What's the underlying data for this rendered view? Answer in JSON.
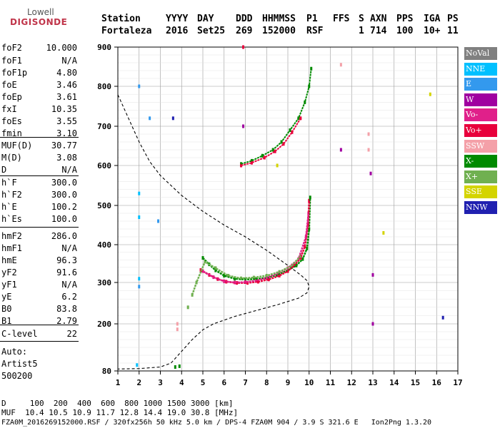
{
  "logo": {
    "line1": "Lowell",
    "line2": "DIGISONDE"
  },
  "header": {
    "row1": [
      "Station",
      "YYYY",
      "DAY",
      "DDD",
      "HHMMSS",
      "P1",
      "FFS",
      "S",
      "AXN",
      "PPS",
      "IGA",
      "PS"
    ],
    "row2": [
      "Fortaleza",
      "2016",
      "Set25",
      "269",
      "152000",
      "RSF",
      "1",
      "714",
      "100",
      "10+",
      "11"
    ]
  },
  "params": [
    {
      "name": "foF2",
      "value": "10.000"
    },
    {
      "name": "foF1",
      "value": "N/A"
    },
    {
      "name": "foF1p",
      "value": "4.80"
    },
    {
      "name": "foE",
      "value": "3.46"
    },
    {
      "name": "foEp",
      "value": "3.61"
    },
    {
      "name": "fxI",
      "value": "10.35"
    },
    {
      "name": "foEs",
      "value": "3.55"
    },
    {
      "name": "fmin",
      "value": "3.10"
    },
    {
      "name": "MUF(D)",
      "value": "30.77"
    },
    {
      "name": "M(D)",
      "value": "3.08"
    },
    {
      "name": "D",
      "value": "N/A"
    },
    {
      "name": "h`F",
      "value": "300.0"
    },
    {
      "name": "h`F2",
      "value": "300.0"
    },
    {
      "name": "h`E",
      "value": "100.2"
    },
    {
      "name": "h`Es",
      "value": "100.0"
    },
    {
      "name": "hmF2",
      "value": "286.0"
    },
    {
      "name": "hmF1",
      "value": "N/A"
    },
    {
      "name": "hmE",
      "value": "96.3"
    },
    {
      "name": "yF2",
      "value": "91.6"
    },
    {
      "name": "yF1",
      "value": "N/A"
    },
    {
      "name": "yE",
      "value": "6.2"
    },
    {
      "name": "B0",
      "value": "83.8"
    },
    {
      "name": "B1",
      "value": "2.79"
    },
    {
      "name": "C-level",
      "value": "22"
    },
    {
      "name": "Auto:",
      "value": ""
    },
    {
      "name": "Artist5",
      "value": ""
    },
    {
      "name": "500200",
      "value": ""
    }
  ],
  "footer": {
    "line1": "D     100  200  400  600  800 1000 1500 3000 [km]",
    "line2": "MUF  10.4 10.5 10.9 11.7 12.8 14.4 19.0 30.8 [MHz]",
    "line3": "FZA0M_2016269152000.RSF / 320fx256h 50 kHz 5.0 km / DPS-4 FZA0M 904 / 3.9 S 321.6 E   Ion2Png 1.3.20"
  },
  "legend": [
    {
      "label": "NoVal",
      "color": "#808080"
    },
    {
      "label": "NNE",
      "color": "#00c0ff"
    },
    {
      "label": "E",
      "color": "#3399ee"
    },
    {
      "label": "W",
      "color": "#a000a0"
    },
    {
      "label": "Vo-",
      "color": "#e0208a"
    },
    {
      "label": "Vo+",
      "color": "#e8003c"
    },
    {
      "label": "SSW",
      "color": "#f4a0a8"
    },
    {
      "label": "X-",
      "color": "#008a00"
    },
    {
      "label": "X+",
      "color": "#70b050"
    },
    {
      "label": "SSE",
      "color": "#d4d400"
    },
    {
      "label": "NNW",
      "color": "#2020b0"
    }
  ],
  "chart_data": {
    "type": "scatter",
    "xlabel": "",
    "ylabel": "",
    "x_ticks": [
      1,
      2,
      3,
      4,
      5,
      6,
      7,
      8,
      9,
      10,
      11,
      12,
      13,
      14,
      15,
      16,
      17
    ],
    "y_ticks": [
      80,
      200,
      300,
      400,
      500,
      600,
      700,
      800,
      900
    ],
    "xlim": [
      1,
      17
    ],
    "ylim": [
      80,
      900
    ],
    "y_scale": "reciprocal-compressed",
    "grid": true,
    "series": [
      {
        "name": "X-",
        "color": "#008a00",
        "points": [
          [
            5.0,
            365
          ],
          [
            5.3,
            348
          ],
          [
            5.6,
            332
          ],
          [
            6.0,
            318
          ],
          [
            6.5,
            310
          ],
          [
            7.0,
            308
          ],
          [
            7.5,
            309
          ],
          [
            8.0,
            312
          ],
          [
            8.5,
            320
          ],
          [
            9.0,
            332
          ],
          [
            9.4,
            345
          ],
          [
            9.7,
            362
          ],
          [
            9.9,
            390
          ],
          [
            10.0,
            440
          ],
          [
            10.05,
            520
          ],
          [
            6.8,
            604
          ],
          [
            7.3,
            612
          ],
          [
            7.8,
            625
          ],
          [
            8.3,
            640
          ],
          [
            8.7,
            660
          ],
          [
            9.1,
            690
          ],
          [
            9.5,
            720
          ],
          [
            9.8,
            760
          ],
          [
            10.0,
            800
          ],
          [
            10.1,
            845
          ],
          [
            3.7,
            90
          ],
          [
            3.9,
            92
          ]
        ]
      },
      {
        "name": "Vo+",
        "color": "#e8003c",
        "points": [
          [
            4.9,
            333
          ],
          [
            5.3,
            320
          ],
          [
            5.7,
            309
          ],
          [
            6.1,
            302
          ],
          [
            6.6,
            299
          ],
          [
            7.1,
            299
          ],
          [
            7.6,
            302
          ],
          [
            8.1,
            308
          ],
          [
            8.6,
            318
          ],
          [
            9.0,
            330
          ],
          [
            9.3,
            345
          ],
          [
            9.6,
            365
          ],
          [
            9.8,
            395
          ],
          [
            9.95,
            450
          ],
          [
            10.0,
            512
          ],
          [
            6.8,
            600
          ],
          [
            7.3,
            607
          ],
          [
            7.9,
            620
          ],
          [
            8.4,
            636
          ],
          [
            8.8,
            655
          ],
          [
            9.2,
            685
          ],
          [
            9.6,
            720
          ],
          [
            6.9,
            900
          ]
        ]
      },
      {
        "name": "Vo-",
        "color": "#e0208a",
        "points": [
          [
            5.0,
            330
          ],
          [
            5.5,
            314
          ],
          [
            6.0,
            303
          ],
          [
            6.5,
            300
          ],
          [
            7.0,
            301
          ],
          [
            7.5,
            305
          ],
          [
            8.0,
            312
          ],
          [
            8.5,
            324
          ],
          [
            9.0,
            338
          ],
          [
            9.5,
            362
          ],
          [
            9.85,
            420
          ],
          [
            9.97,
            480
          ]
        ]
      },
      {
        "name": "X+",
        "color": "#70b050",
        "points": [
          [
            5.1,
            355
          ],
          [
            5.6,
            338
          ],
          [
            6.2,
            318
          ],
          [
            6.8,
            311
          ],
          [
            7.4,
            313
          ],
          [
            8.0,
            318
          ],
          [
            8.6,
            328
          ],
          [
            9.2,
            345
          ],
          [
            9.6,
            370
          ],
          [
            4.3,
            240
          ],
          [
            4.5,
            270
          ],
          [
            4.7,
            300
          ]
        ]
      },
      {
        "name": "SSW",
        "color": "#f4a0a8",
        "points": [
          [
            3.8,
            186
          ],
          [
            3.8,
            200
          ],
          [
            12.8,
            640
          ],
          [
            12.8,
            680
          ],
          [
            11.5,
            855
          ]
        ]
      },
      {
        "name": "NNE",
        "color": "#00c0ff",
        "points": [
          [
            2.0,
            530
          ],
          [
            2.0,
            470
          ],
          [
            2.0,
            310
          ],
          [
            1.9,
            95
          ]
        ]
      },
      {
        "name": "E",
        "color": "#3399ee",
        "points": [
          [
            2.0,
            800
          ],
          [
            2.0,
            290
          ],
          [
            2.5,
            720
          ],
          [
            2.9,
            460
          ]
        ]
      },
      {
        "name": "W",
        "color": "#a000a0",
        "points": [
          [
            13.0,
            320
          ],
          [
            13.0,
            200
          ],
          [
            11.5,
            640
          ],
          [
            6.9,
            700
          ],
          [
            12.9,
            580
          ]
        ]
      },
      {
        "name": "SSE",
        "color": "#d4d400",
        "points": [
          [
            8.5,
            600
          ],
          [
            15.7,
            780
          ],
          [
            13.5,
            430
          ]
        ]
      },
      {
        "name": "NNW",
        "color": "#2020b0",
        "points": [
          [
            3.6,
            720
          ],
          [
            16.3,
            215
          ]
        ]
      }
    ],
    "model_profile": [
      [
        1.0,
        779
      ],
      [
        1.5,
        720
      ],
      [
        2.0,
        660
      ],
      [
        2.5,
        610
      ],
      [
        3.0,
        575
      ],
      [
        4.0,
        525
      ],
      [
        5.0,
        485
      ],
      [
        6.0,
        450
      ],
      [
        7.0,
        420
      ],
      [
        8.0,
        385
      ],
      [
        9.0,
        345
      ],
      [
        9.6,
        320
      ],
      [
        9.9,
        305
      ],
      [
        10.0,
        290
      ],
      [
        9.9,
        275
      ],
      [
        9.5,
        262
      ],
      [
        8.5,
        246
      ],
      [
        7.5,
        232
      ],
      [
        6.5,
        218
      ],
      [
        5.5,
        200
      ],
      [
        5.0,
        185
      ],
      [
        4.5,
        160
      ],
      [
        4.0,
        130
      ],
      [
        3.5,
        100
      ],
      [
        3.0,
        90
      ],
      [
        2.0,
        86
      ],
      [
        1.0,
        85
      ]
    ]
  }
}
